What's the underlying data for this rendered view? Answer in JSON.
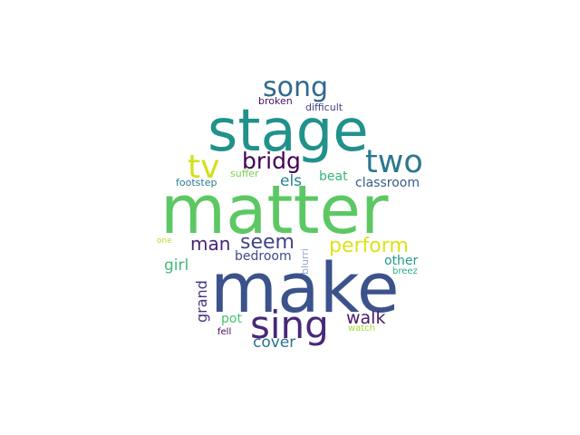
{
  "wordcloud": {
    "words": [
      {
        "key": "matter",
        "text": "matter",
        "color": "#5cc863"
      },
      {
        "key": "make",
        "text": "make",
        "color": "#3b528b"
      },
      {
        "key": "stage",
        "text": "stage",
        "color": "#21918c"
      },
      {
        "key": "sing",
        "text": "sing",
        "color": "#482878"
      },
      {
        "key": "two",
        "text": "two",
        "color": "#2a788e"
      },
      {
        "key": "tv",
        "text": "tv",
        "color": "#d0e11c"
      },
      {
        "key": "song",
        "text": "song",
        "color": "#31688e"
      },
      {
        "key": "bridg",
        "text": "bridg",
        "color": "#440154"
      },
      {
        "key": "perform",
        "text": "perform",
        "color": "#dde318"
      },
      {
        "key": "man",
        "text": "man",
        "color": "#482475"
      },
      {
        "key": "seem",
        "text": "seem",
        "color": "#414487"
      },
      {
        "key": "walk",
        "text": "walk",
        "color": "#481a6c"
      },
      {
        "key": "cover",
        "text": "cover",
        "color": "#2c728e"
      },
      {
        "key": "girl",
        "text": "girl",
        "color": "#3fbc73"
      },
      {
        "key": "grand",
        "text": "grand",
        "color": "#46337e"
      },
      {
        "key": "els",
        "text": "els",
        "color": "#25858e"
      },
      {
        "key": "beat",
        "text": "beat",
        "color": "#35b779"
      },
      {
        "key": "classroom",
        "text": "classroom",
        "color": "#365c8d"
      },
      {
        "key": "bedroom",
        "text": "bedroom",
        "color": "#3e4989"
      },
      {
        "key": "other",
        "text": "other",
        "color": "#1f9a8a"
      },
      {
        "key": "pot",
        "text": "pot",
        "color": "#4ac16d"
      },
      {
        "key": "footstep",
        "text": "footstep",
        "color": "#287c8e"
      },
      {
        "key": "suffer",
        "text": "suffer",
        "color": "#7ad151"
      },
      {
        "key": "broken",
        "text": "broken",
        "color": "#471365"
      },
      {
        "key": "difficult",
        "text": "difficult",
        "color": "#433e85"
      },
      {
        "key": "blurri",
        "text": "blurri",
        "color": "#8fa8d0"
      },
      {
        "key": "breez",
        "text": "breez",
        "color": "#29af7f"
      },
      {
        "key": "one",
        "text": "one",
        "color": "#b5de2b"
      },
      {
        "key": "fell",
        "text": "fell",
        "color": "#440154"
      },
      {
        "key": "watch",
        "text": "watch",
        "color": "#a2da37"
      }
    ]
  }
}
